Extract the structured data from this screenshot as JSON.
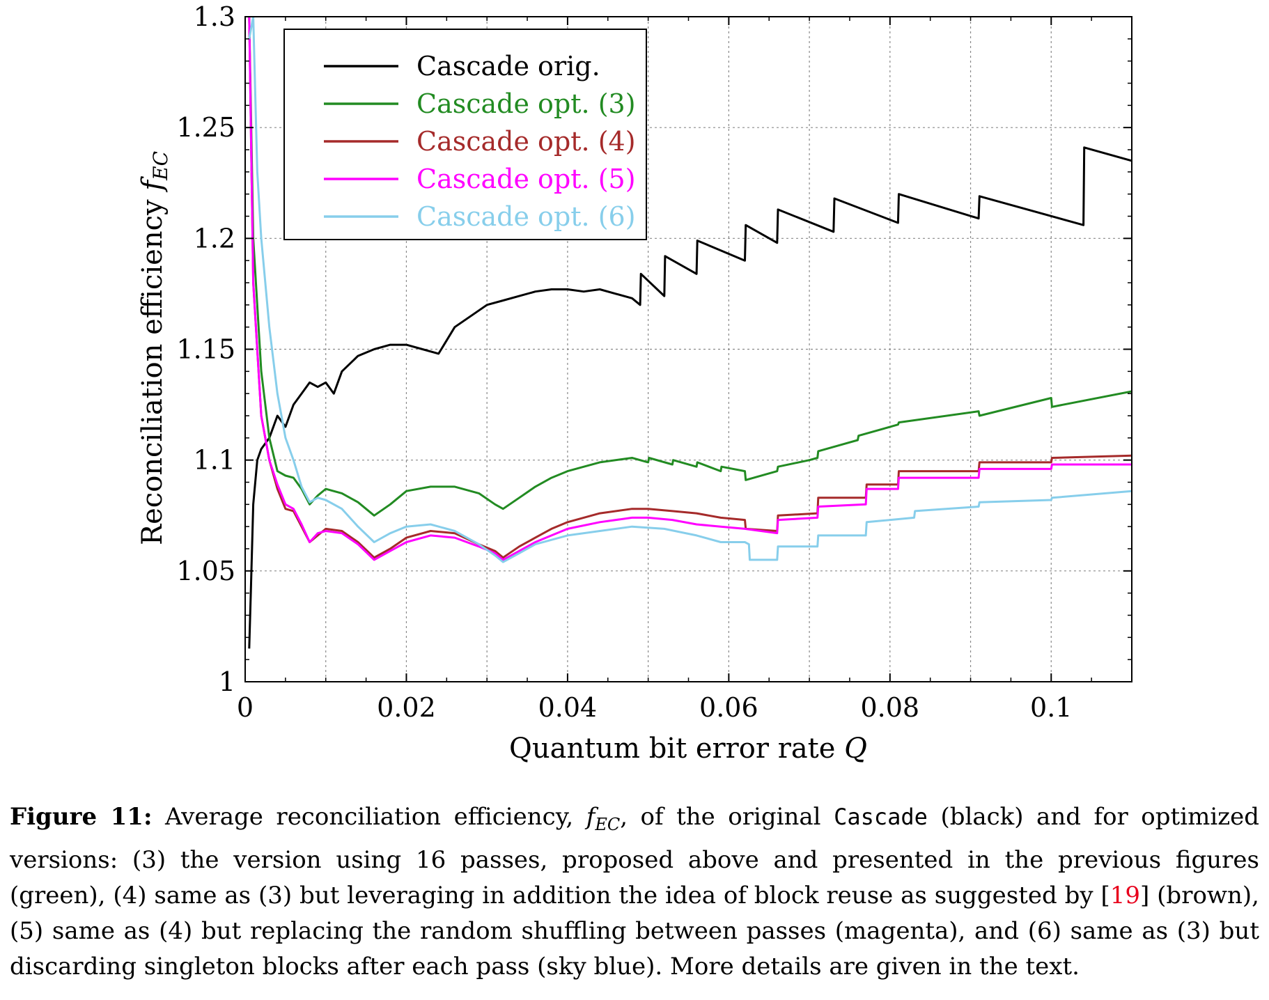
{
  "chart_data": {
    "type": "line",
    "xlabel": "Quantum bit error rate Q",
    "ylabel": "Reconciliation efficiency f_EC",
    "xlim": [
      0,
      0.11
    ],
    "ylim": [
      1.0,
      1.3
    ],
    "xticks": [
      0,
      0.02,
      0.04,
      0.06,
      0.08,
      0.1
    ],
    "xtick_labels": [
      "0",
      "0.02",
      "0.04",
      "0.06",
      "0.08",
      "0.1"
    ],
    "yticks": [
      1.0,
      1.05,
      1.1,
      1.15,
      1.2,
      1.25,
      1.3
    ],
    "ytick_labels": [
      "1",
      "1.05",
      "1.1",
      "1.15",
      "1.2",
      "1.25",
      "1.3"
    ],
    "grid": true,
    "legend_position": "top-left",
    "series": [
      {
        "name": "Cascade orig.",
        "color": "#000000",
        "x": [
          0.0005,
          0.0007,
          0.001,
          0.0015,
          0.002,
          0.003,
          0.004,
          0.005,
          0.006,
          0.007,
          0.008,
          0.009,
          0.01,
          0.011,
          0.012,
          0.014,
          0.016,
          0.018,
          0.02,
          0.022,
          0.024,
          0.026,
          0.028,
          0.03,
          0.032,
          0.034,
          0.036,
          0.038,
          0.04,
          0.042,
          0.044,
          0.046,
          0.048,
          0.049,
          0.0491,
          0.052,
          0.0521,
          0.056,
          0.0561,
          0.062,
          0.0621,
          0.066,
          0.0661,
          0.073,
          0.0731,
          0.081,
          0.0811,
          0.091,
          0.0911,
          0.104,
          0.1041,
          0.11
        ],
        "y": [
          1.015,
          1.04,
          1.08,
          1.1,
          1.105,
          1.11,
          1.12,
          1.115,
          1.125,
          1.13,
          1.135,
          1.133,
          1.135,
          1.13,
          1.14,
          1.147,
          1.15,
          1.152,
          1.152,
          1.15,
          1.148,
          1.16,
          1.165,
          1.17,
          1.172,
          1.174,
          1.176,
          1.177,
          1.177,
          1.176,
          1.177,
          1.175,
          1.173,
          1.17,
          1.184,
          1.174,
          1.192,
          1.184,
          1.199,
          1.19,
          1.206,
          1.198,
          1.213,
          1.203,
          1.218,
          1.207,
          1.22,
          1.209,
          1.219,
          1.206,
          1.241,
          1.235
        ]
      },
      {
        "name": "Cascade opt. (3)",
        "color": "#228B22",
        "x": [
          0.0005,
          0.001,
          0.002,
          0.003,
          0.004,
          0.005,
          0.006,
          0.007,
          0.008,
          0.009,
          0.01,
          0.012,
          0.014,
          0.016,
          0.018,
          0.02,
          0.023,
          0.026,
          0.029,
          0.031,
          0.032,
          0.034,
          0.036,
          0.038,
          0.04,
          0.044,
          0.048,
          0.05,
          0.0501,
          0.053,
          0.0531,
          0.056,
          0.0561,
          0.059,
          0.0591,
          0.062,
          0.0621,
          0.066,
          0.0661,
          0.07,
          0.071,
          0.0711,
          0.076,
          0.0761,
          0.081,
          0.0811,
          0.091,
          0.0911,
          0.1,
          0.1001,
          0.11
        ],
        "y": [
          1.3,
          1.2,
          1.14,
          1.11,
          1.095,
          1.093,
          1.092,
          1.087,
          1.08,
          1.084,
          1.087,
          1.085,
          1.081,
          1.075,
          1.08,
          1.086,
          1.088,
          1.088,
          1.085,
          1.08,
          1.078,
          1.083,
          1.088,
          1.092,
          1.095,
          1.099,
          1.101,
          1.099,
          1.101,
          1.098,
          1.1,
          1.097,
          1.099,
          1.095,
          1.097,
          1.095,
          1.091,
          1.095,
          1.097,
          1.1,
          1.101,
          1.104,
          1.109,
          1.111,
          1.116,
          1.117,
          1.122,
          1.12,
          1.128,
          1.124,
          1.131
        ]
      },
      {
        "name": "Cascade opt. (4)",
        "color": "#A52A2A",
        "x": [
          0.0005,
          0.001,
          0.002,
          0.003,
          0.004,
          0.005,
          0.006,
          0.007,
          0.008,
          0.009,
          0.01,
          0.012,
          0.014,
          0.016,
          0.018,
          0.02,
          0.023,
          0.026,
          0.029,
          0.031,
          0.032,
          0.034,
          0.036,
          0.038,
          0.04,
          0.044,
          0.048,
          0.05,
          0.053,
          0.056,
          0.059,
          0.062,
          0.0621,
          0.066,
          0.0661,
          0.071,
          0.0711,
          0.077,
          0.0771,
          0.081,
          0.0811,
          0.091,
          0.0911,
          0.1,
          0.1001,
          0.11
        ],
        "y": [
          1.3,
          1.18,
          1.12,
          1.1,
          1.087,
          1.078,
          1.077,
          1.07,
          1.063,
          1.066,
          1.069,
          1.068,
          1.063,
          1.056,
          1.06,
          1.065,
          1.068,
          1.067,
          1.062,
          1.059,
          1.056,
          1.061,
          1.065,
          1.069,
          1.072,
          1.076,
          1.078,
          1.078,
          1.077,
          1.076,
          1.074,
          1.073,
          1.069,
          1.068,
          1.075,
          1.076,
          1.083,
          1.083,
          1.089,
          1.089,
          1.095,
          1.095,
          1.099,
          1.099,
          1.101,
          1.102
        ]
      },
      {
        "name": "Cascade opt. (5)",
        "color": "#FF00FF",
        "x": [
          0.0005,
          0.001,
          0.002,
          0.003,
          0.004,
          0.005,
          0.006,
          0.007,
          0.008,
          0.009,
          0.01,
          0.012,
          0.014,
          0.016,
          0.018,
          0.02,
          0.023,
          0.026,
          0.029,
          0.031,
          0.032,
          0.034,
          0.036,
          0.038,
          0.04,
          0.044,
          0.048,
          0.05,
          0.053,
          0.056,
          0.059,
          0.062,
          0.066,
          0.0661,
          0.071,
          0.0711,
          0.077,
          0.0771,
          0.081,
          0.0811,
          0.091,
          0.0911,
          0.1,
          0.1001,
          0.11
        ],
        "y": [
          1.3,
          1.18,
          1.12,
          1.1,
          1.089,
          1.08,
          1.078,
          1.071,
          1.063,
          1.067,
          1.068,
          1.067,
          1.062,
          1.055,
          1.059,
          1.063,
          1.066,
          1.065,
          1.061,
          1.058,
          1.055,
          1.059,
          1.063,
          1.066,
          1.069,
          1.072,
          1.074,
          1.074,
          1.073,
          1.071,
          1.07,
          1.069,
          1.067,
          1.073,
          1.074,
          1.079,
          1.08,
          1.087,
          1.087,
          1.092,
          1.092,
          1.096,
          1.096,
          1.098,
          1.098
        ]
      },
      {
        "name": "Cascade opt. (6)",
        "color": "#87CEEB",
        "x": [
          0.0005,
          0.001,
          0.0015,
          0.002,
          0.003,
          0.004,
          0.005,
          0.006,
          0.007,
          0.008,
          0.009,
          0.01,
          0.012,
          0.014,
          0.016,
          0.018,
          0.02,
          0.023,
          0.026,
          0.029,
          0.031,
          0.032,
          0.034,
          0.036,
          0.04,
          0.044,
          0.048,
          0.052,
          0.056,
          0.059,
          0.062,
          0.0625,
          0.0626,
          0.066,
          0.0661,
          0.071,
          0.0711,
          0.077,
          0.0771,
          0.083,
          0.0831,
          0.091,
          0.0911,
          0.1,
          0.1001,
          0.11
        ],
        "y": [
          1.29,
          1.3,
          1.23,
          1.2,
          1.16,
          1.13,
          1.11,
          1.1,
          1.088,
          1.081,
          1.083,
          1.082,
          1.078,
          1.07,
          1.063,
          1.067,
          1.07,
          1.071,
          1.068,
          1.062,
          1.057,
          1.054,
          1.058,
          1.062,
          1.066,
          1.068,
          1.07,
          1.069,
          1.066,
          1.063,
          1.063,
          1.062,
          1.055,
          1.055,
          1.061,
          1.061,
          1.066,
          1.066,
          1.072,
          1.074,
          1.077,
          1.079,
          1.081,
          1.082,
          1.083,
          1.086
        ]
      }
    ]
  },
  "caption": {
    "label": "Figure 11:",
    "part1": " Average reconciliation efficiency, ",
    "feci": "f",
    "fecsub": "EC",
    "part2": ", of the original ",
    "cascade": "Cascade",
    "part3": " (black) and for optimized versions: (3) the version using 16 passes, proposed above and presented in the previous figures (green), (4) same as (3) but leveraging in addition the idea of block reuse as suggested by [",
    "ref": "19",
    "part4": "] (brown), (5) same as (4) but replacing the random shuffling between passes (magenta), and (6) same as (3) but discarding singleton blocks after each pass (sky blue). More details are given in the text."
  }
}
